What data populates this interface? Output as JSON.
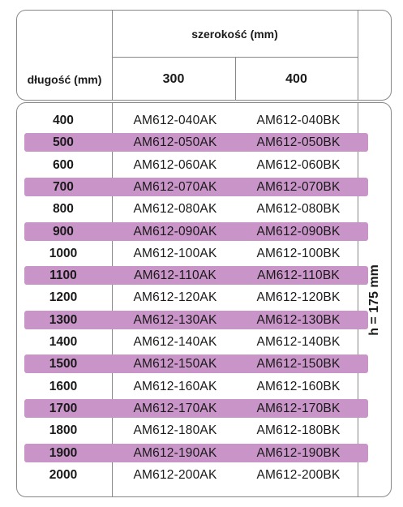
{
  "header": {
    "width_label": "szerokość (mm)",
    "length_label": "długość (mm)",
    "widths": [
      "300",
      "400"
    ]
  },
  "height_note": "h = 175 mm",
  "rows": [
    {
      "length": "400",
      "col300": "AM612-040AK",
      "col400": "AM612-040BK",
      "highlight": false
    },
    {
      "length": "500",
      "col300": "AM612-050AK",
      "col400": "AM612-050BK",
      "highlight": true
    },
    {
      "length": "600",
      "col300": "AM612-060AK",
      "col400": "AM612-060BK",
      "highlight": false
    },
    {
      "length": "700",
      "col300": "AM612-070AK",
      "col400": "AM612-070BK",
      "highlight": true
    },
    {
      "length": "800",
      "col300": "AM612-080AK",
      "col400": "AM612-080BK",
      "highlight": false
    },
    {
      "length": "900",
      "col300": "AM612-090AK",
      "col400": "AM612-090BK",
      "highlight": true
    },
    {
      "length": "1000",
      "col300": "AM612-100AK",
      "col400": "AM612-100BK",
      "highlight": false
    },
    {
      "length": "1100",
      "col300": "AM612-110AK",
      "col400": "AM612-110BK",
      "highlight": true
    },
    {
      "length": "1200",
      "col300": "AM612-120AK",
      "col400": "AM612-120BK",
      "highlight": false
    },
    {
      "length": "1300",
      "col300": "AM612-130AK",
      "col400": "AM612-130BK",
      "highlight": true
    },
    {
      "length": "1400",
      "col300": "AM612-140AK",
      "col400": "AM612-140BK",
      "highlight": false
    },
    {
      "length": "1500",
      "col300": "AM612-150AK",
      "col400": "AM612-150BK",
      "highlight": true
    },
    {
      "length": "1600",
      "col300": "AM612-160AK",
      "col400": "AM612-160BK",
      "highlight": false
    },
    {
      "length": "1700",
      "col300": "AM612-170AK",
      "col400": "AM612-170BK",
      "highlight": true
    },
    {
      "length": "1800",
      "col300": "AM612-180AK",
      "col400": "AM612-180BK",
      "highlight": false
    },
    {
      "length": "1900",
      "col300": "AM612-190AK",
      "col400": "AM612-190BK",
      "highlight": true
    },
    {
      "length": "2000",
      "col300": "AM612-200AK",
      "col400": "AM612-200BK",
      "highlight": false
    }
  ],
  "colors": {
    "stripe": "#c994c8",
    "border": "#888888",
    "text": "#1a1a1a"
  }
}
